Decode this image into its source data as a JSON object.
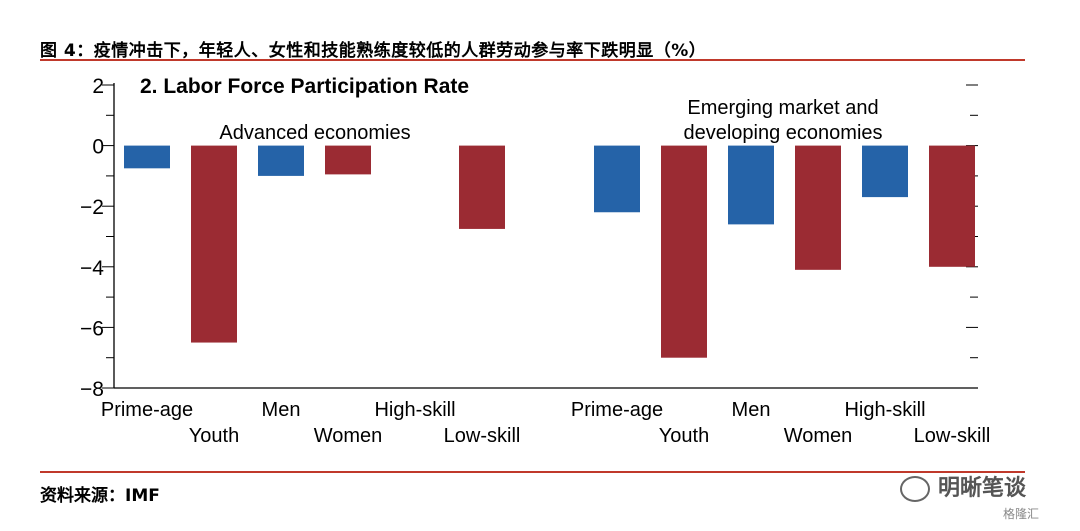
{
  "figure_title": "图 4：疫情冲击下，年轻人、女性和技能熟练度较低的人群劳动参与率下跌明显（%）",
  "source": "资料来源：IMF",
  "watermark": "明晰笔谈",
  "watermark_sub": "格隆汇",
  "colors": {
    "blue": "#2563a8",
    "red": "#9b2b33",
    "rule": "#c0392b"
  },
  "chart_data": {
    "type": "bar",
    "title": "2. Labor Force Participation Rate",
    "ylim": [
      -8,
      2
    ],
    "yticks": [
      2,
      0,
      -2,
      -4,
      -6,
      -8
    ],
    "ytick_labels": [
      "2",
      "0",
      "−2",
      "−4",
      "−6",
      "−8"
    ],
    "groups": [
      {
        "label": "Advanced economies",
        "categories": [
          "Prime-age",
          "Youth",
          "Men",
          "Women",
          "High-skill",
          "Low-skill"
        ],
        "values": [
          -0.75,
          -6.5,
          -1.0,
          -0.95,
          0,
          -2.75
        ],
        "colors": [
          "blue",
          "red",
          "blue",
          "red",
          "blue",
          "red"
        ]
      },
      {
        "label_lines": [
          "Emerging market and",
          "developing economies"
        ],
        "categories": [
          "Prime-age",
          "Youth",
          "Men",
          "Women",
          "High-skill",
          "Low-skill"
        ],
        "values": [
          -2.2,
          -7.0,
          -2.6,
          -4.1,
          -1.7,
          -4.0
        ],
        "colors": [
          "blue",
          "red",
          "blue",
          "red",
          "blue",
          "red"
        ]
      }
    ]
  }
}
